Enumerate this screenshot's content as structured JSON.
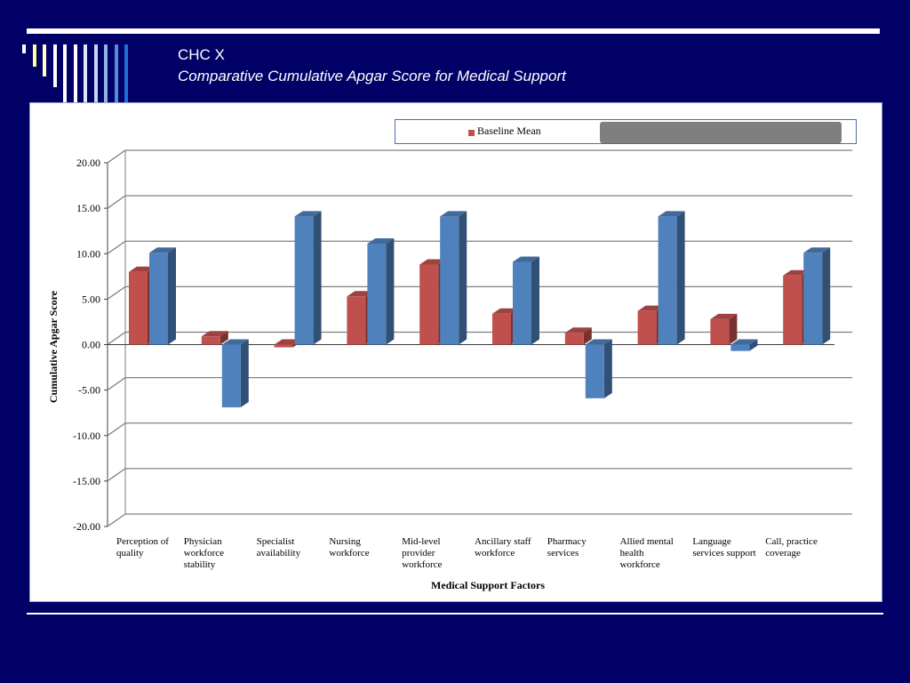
{
  "slide": {
    "title_line1": "CHC X",
    "title_line2": "Comparative Cumulative Apgar Score for Medical Support"
  },
  "colors": {
    "background": "#000066",
    "baseline": "#c0504d",
    "second_series": "#4f81bd",
    "stripe_colors": [
      "#ffffff",
      "#ffff99",
      "#ffffcc",
      "#ffffff",
      "#ffffff",
      "#ffffff",
      "#dde8f5",
      "#c6d9f0",
      "#8db3e2",
      "#548dd4",
      "#1f6fd8"
    ]
  },
  "legend": {
    "items": [
      {
        "label": "Baseline Mean",
        "color": "#c0504d"
      }
    ],
    "redacted": true
  },
  "chart_data": {
    "type": "bar",
    "three_d": true,
    "categories": [
      "Perception of quality",
      "Physician workforce stability",
      "Specialist availability",
      "Nursing workforce",
      "Mid-level provider workforce",
      "Ancillary staff workforce",
      "Pharmacy services",
      "Allied mental health workforce",
      "Language services support",
      "Call, practice coverage"
    ],
    "category_lines": [
      [
        "Perception of",
        "quality"
      ],
      [
        "Physician",
        "workforce",
        "stability"
      ],
      [
        "Specialist",
        "availability"
      ],
      [
        "Nursing",
        "workforce"
      ],
      [
        "Mid-level",
        "provider",
        "workforce"
      ],
      [
        "Ancillary staff",
        "workforce"
      ],
      [
        "Pharmacy",
        "services"
      ],
      [
        "Allied mental",
        "health",
        "workforce"
      ],
      [
        "Language",
        "services support"
      ],
      [
        "Call, practice",
        "coverage"
      ]
    ],
    "series": [
      {
        "name": "Baseline Mean",
        "color": "#c0504d",
        "values": [
          8.0,
          0.9,
          -0.3,
          5.3,
          8.8,
          3.4,
          1.3,
          3.7,
          2.8,
          7.6
        ]
      },
      {
        "color": "#4f81bd",
        "values": [
          10.1,
          -6.9,
          14.1,
          11.1,
          14.1,
          9.1,
          -5.9,
          14.1,
          -0.7,
          10.1
        ]
      }
    ],
    "y_ticks": [
      "20.00",
      "15.00",
      "10.00",
      "5.00",
      "0.00",
      "-5.00",
      "-10.00",
      "-15.00",
      "-20.00"
    ],
    "ylim": [
      -20,
      20
    ],
    "ylabel": "Cumulative Apgar Score",
    "xlabel": "Medical Support  Factors",
    "grid": true,
    "legend_position": "top"
  }
}
